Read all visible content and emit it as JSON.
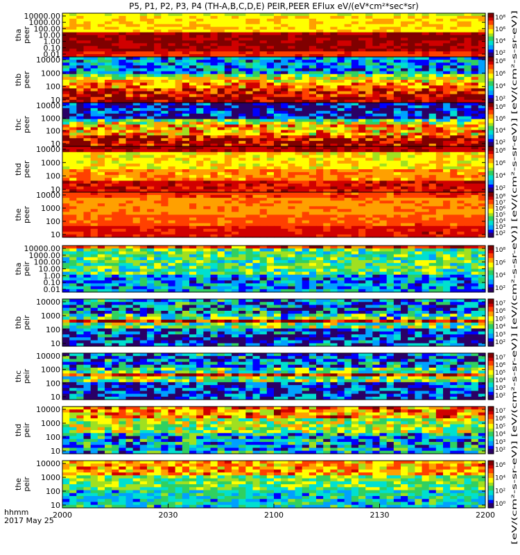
{
  "title": "P5, P1, P2, P3, P4 (TH-A,B,C,D,E) PEIR,PEER EFlux eV/(eV*cm²*sec*sr)",
  "colorbar_unit_label": "[eV/(cm²-s-sr-eV)] [eV/(cm²-s-sr-eV)] [eV/(cm²-s-sr-eV)] [eV/(cm²-s-sr-eV)] [eV/(cm²-s-sr-eV)]",
  "x_axis": {
    "unit_label": "hhmm",
    "date_label": "2017 May 25",
    "tick_labels": [
      "2000",
      "2030",
      "2100",
      "2130",
      "2200"
    ]
  },
  "chart_data": {
    "type": "heatmap",
    "title": "P5, P1, P2, P3, P4 (TH-A,B,C,D,E) PEIR,PEER EFlux eV/(eV*cm²*sec*sr)",
    "x": {
      "label": "hhmm",
      "date": "2017 May 25",
      "range": [
        "20:00",
        "22:00"
      ],
      "ticks": [
        "2000",
        "2030",
        "2100",
        "2130",
        "2200"
      ]
    },
    "y_scale": "log",
    "colorbar_scale": "log",
    "panels": [
      {
        "label_line1": "tha",
        "label_line2": "peer",
        "yticks": [
          "10000.00",
          "1000.00",
          "100.00",
          "10.00",
          "1.00",
          "0.10",
          "0.01"
        ],
        "ylim": [
          0.01,
          30000
        ],
        "cb_ticks": [
          "10⁸",
          "10⁶",
          "10⁴",
          "10²"
        ],
        "cb_range": [
          100,
          300000000
        ]
      },
      {
        "label_line1": "thb",
        "label_line2": "peer",
        "yticks": [
          "10000",
          "1000",
          "100",
          "10"
        ],
        "ylim": [
          8,
          30000
        ],
        "cb_ticks": [
          "10⁸",
          "10⁶",
          "10⁴",
          "10²"
        ],
        "cb_range": [
          100,
          300000000
        ]
      },
      {
        "label_line1": "thc",
        "label_line2": "peer",
        "yticks": [
          "10000",
          "1000",
          "100",
          "10"
        ],
        "ylim": [
          8,
          30000
        ],
        "cb_ticks": [
          "10⁸",
          "10⁶",
          "10⁴",
          "10²"
        ],
        "cb_range": [
          100,
          300000000
        ]
      },
      {
        "label_line1": "thd",
        "label_line2": "peer",
        "yticks": [
          "10000",
          "1000",
          "100",
          "10"
        ],
        "ylim": [
          8,
          30000
        ],
        "cb_ticks": [
          "10⁸",
          "10⁶",
          "10⁴",
          "10²"
        ],
        "cb_range": [
          100,
          300000000
        ]
      },
      {
        "label_line1": "the",
        "label_line2": "peer",
        "yticks": [
          "10000",
          "1000",
          "100",
          "10"
        ],
        "ylim": [
          8,
          30000
        ],
        "cb_ticks": [
          "10⁸",
          "10⁷",
          "10⁶",
          "10⁵",
          "10⁴",
          "10³",
          "10²"
        ],
        "cb_range": [
          100,
          100000000
        ]
      },
      {
        "label_line1": "tha",
        "label_line2": "peir",
        "yticks": [
          "10000.00",
          "1000.00",
          "100.00",
          "10.00",
          "1.00",
          "0.10",
          "0.01"
        ],
        "ylim": [
          0.01,
          30000
        ],
        "cb_ticks": [
          "10⁸",
          "10⁶",
          "10⁴",
          "10²"
        ],
        "cb_range": [
          100,
          300000000
        ]
      },
      {
        "label_line1": "thb",
        "label_line2": "peir",
        "yticks": [
          "10000",
          "1000",
          "100",
          "10"
        ],
        "ylim": [
          8,
          30000
        ],
        "cb_ticks": [
          "10⁷",
          "10⁶",
          "10⁵",
          "10⁴",
          "10³",
          "10²"
        ],
        "cb_range": [
          100,
          30000000
        ]
      },
      {
        "label_line1": "thc",
        "label_line2": "peir",
        "yticks": [
          "10000",
          "1000",
          "100",
          "10"
        ],
        "ylim": [
          8,
          30000
        ],
        "cb_ticks": [
          "10⁷",
          "10⁶",
          "10⁵",
          "10⁴",
          "10³",
          "10²"
        ],
        "cb_range": [
          100,
          30000000
        ]
      },
      {
        "label_line1": "thd",
        "label_line2": "peir",
        "yticks": [
          "10000",
          "1000",
          "100",
          "10"
        ],
        "ylim": [
          8,
          30000
        ],
        "cb_ticks": [
          "10⁷",
          "10⁶",
          "10⁵",
          "10⁴",
          "10³",
          "10²"
        ],
        "cb_range": [
          100,
          30000000
        ]
      },
      {
        "label_line1": "the",
        "label_line2": "peir",
        "yticks": [
          "10000",
          "1000",
          "100",
          "10"
        ],
        "ylim": [
          8,
          30000
        ],
        "cb_ticks": [
          "10⁶",
          "10⁴",
          "10²",
          "10⁰"
        ],
        "cb_range": [
          1,
          3000000
        ]
      }
    ],
    "colormap": [
      "#2a0066",
      "#0000ff",
      "#00a0ff",
      "#00e0d0",
      "#30d060",
      "#a0e020",
      "#ffff00",
      "#ffa000",
      "#ff4000",
      "#d00000",
      "#800000"
    ]
  }
}
